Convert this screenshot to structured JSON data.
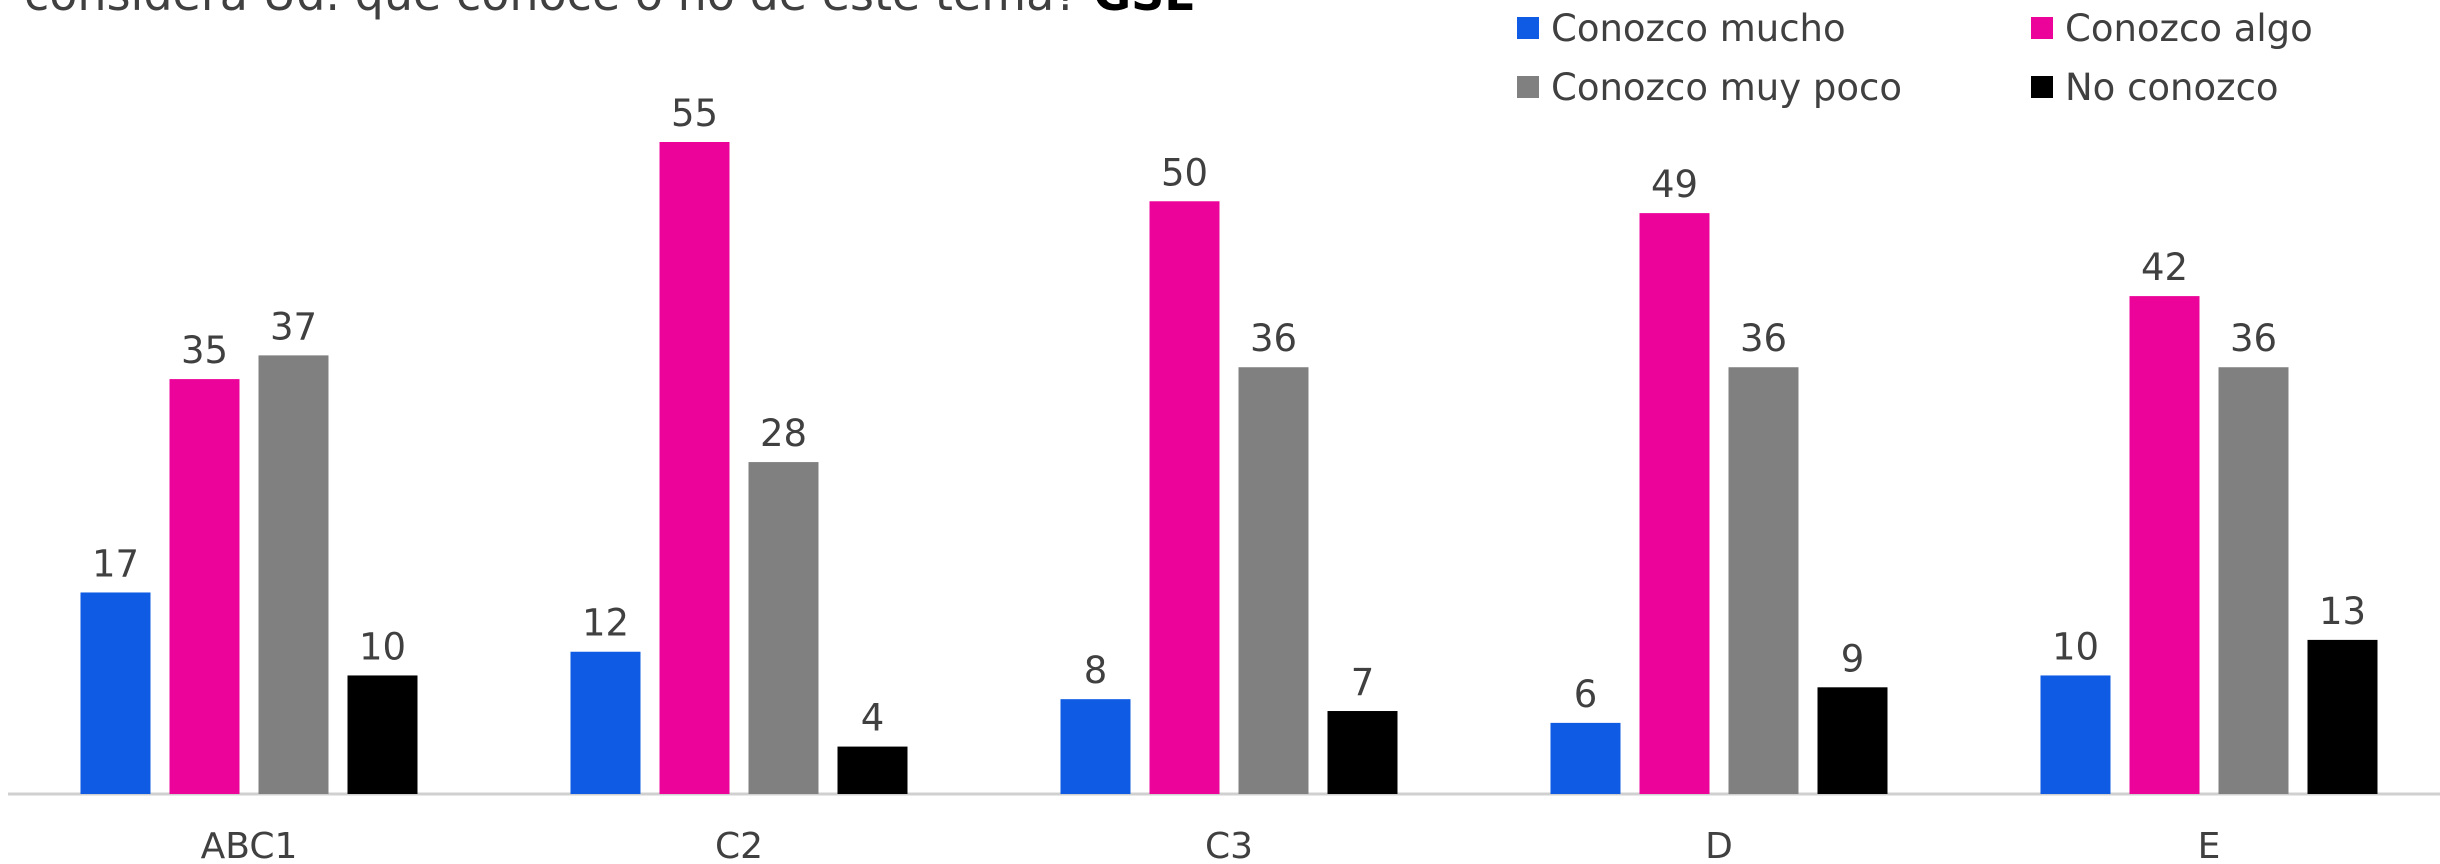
{
  "chart_data": {
    "type": "bar",
    "title": "considera Ud. que conoce o no de este tema?",
    "title_bold": "GSE",
    "categories": [
      "ABC1",
      "C2",
      "C3",
      "D",
      "E"
    ],
    "series": [
      {
        "name": "Conozco mucho",
        "color": "#0f5be3",
        "values": [
          17,
          12,
          8,
          6,
          10
        ]
      },
      {
        "name": "Conozco algo",
        "color": "#ec0399",
        "values": [
          35,
          55,
          50,
          49,
          42
        ]
      },
      {
        "name": "Conozco muy poco",
        "color": "#808080",
        "values": [
          37,
          28,
          36,
          36,
          36
        ]
      },
      {
        "name": "No conozco",
        "color": "#000000",
        "values": [
          10,
          4,
          7,
          9,
          13
        ]
      }
    ]
  }
}
